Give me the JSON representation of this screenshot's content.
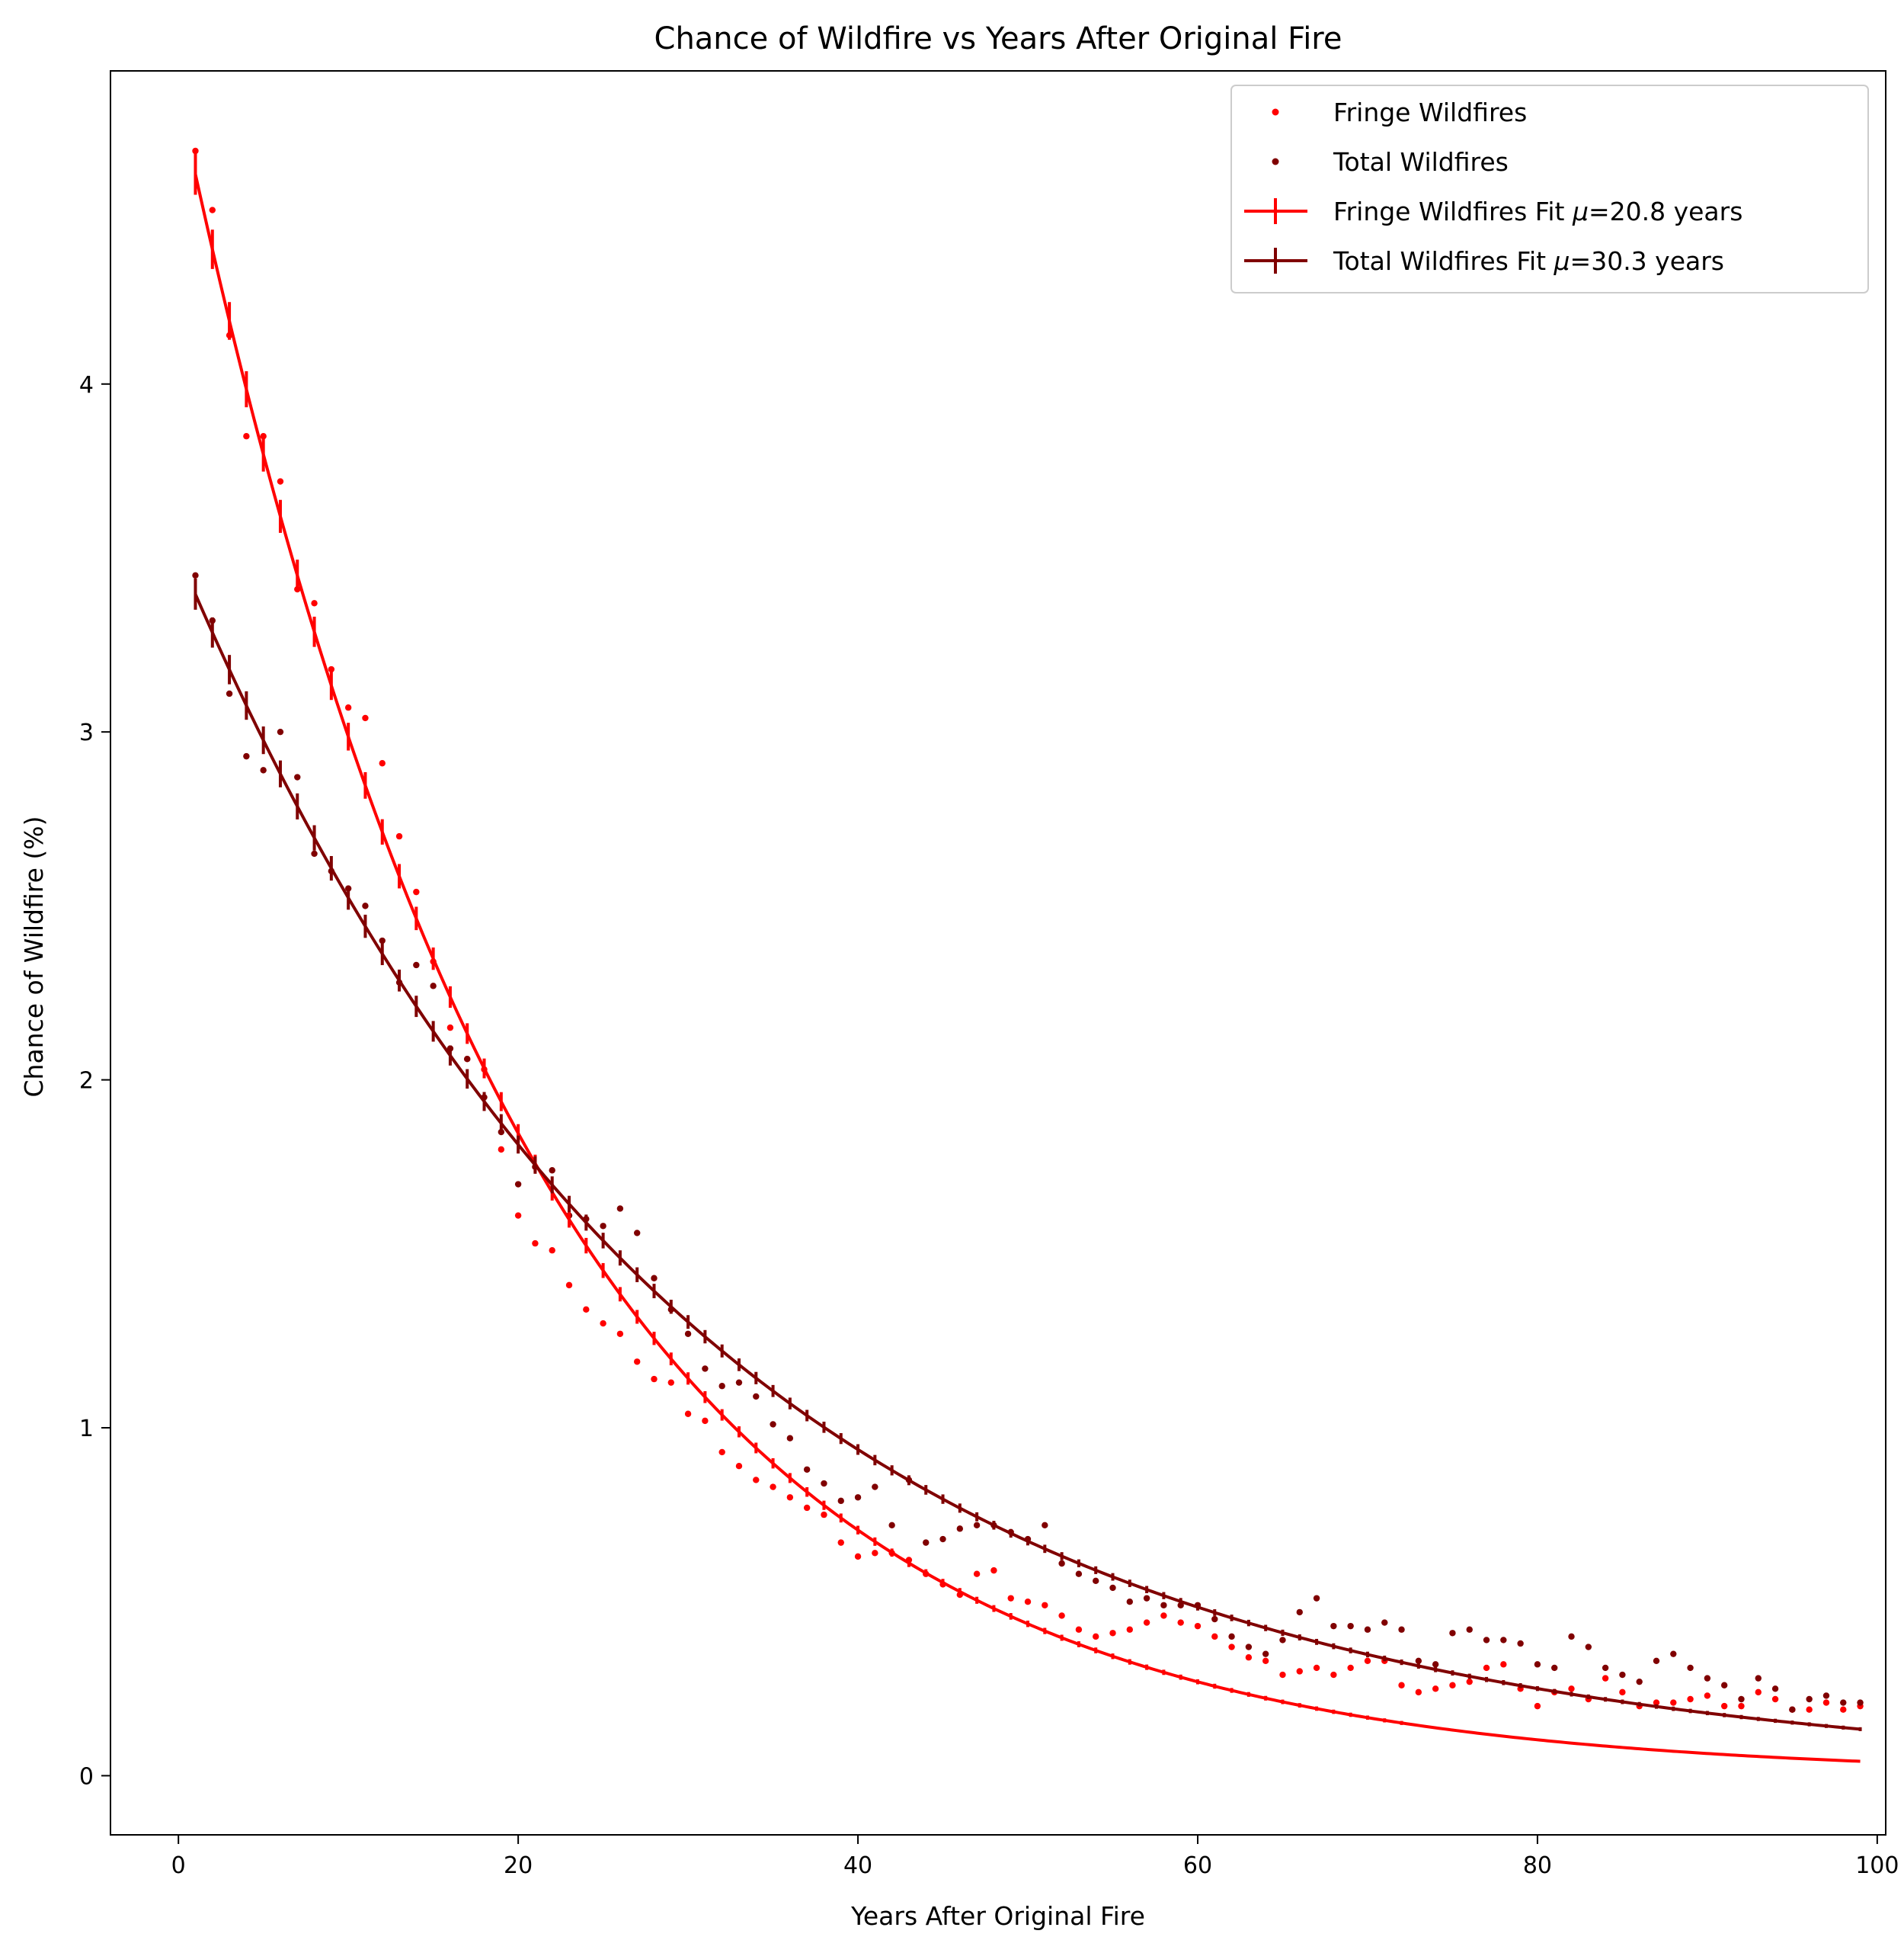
{
  "chart_data": {
    "type": "scatter",
    "title": "Chance of Wildfire vs Years After Original Fire",
    "xlabel": "Years After Original Fire",
    "ylabel": "Chance of Wildfire (%)",
    "xlim": [
      -4,
      100.5
    ],
    "ylim": [
      -0.17,
      4.9
    ],
    "xticks": [
      0,
      20,
      40,
      60,
      80,
      100
    ],
    "yticks": [
      0,
      1,
      2,
      3,
      4
    ],
    "grid": false,
    "legend_position": "top-right",
    "series": [
      {
        "name": "Fringe Wildfires",
        "kind": "scatter",
        "color": "#ff0000",
        "x": [
          1,
          2,
          3,
          4,
          5,
          6,
          7,
          8,
          9,
          10,
          11,
          12,
          13,
          14,
          15,
          16,
          17,
          18,
          19,
          20,
          21,
          22,
          23,
          24,
          25,
          26,
          27,
          28,
          29,
          30,
          31,
          32,
          33,
          34,
          35,
          36,
          37,
          38,
          39,
          40,
          41,
          42,
          43,
          44,
          45,
          46,
          47,
          48,
          49,
          50,
          51,
          52,
          53,
          54,
          55,
          56,
          57,
          58,
          59,
          60,
          61,
          62,
          63,
          64,
          65,
          66,
          67,
          68,
          69,
          70,
          71,
          72,
          73,
          74,
          75,
          76,
          77,
          78,
          79,
          80,
          81,
          82,
          83,
          84,
          85,
          86,
          87,
          88,
          89,
          90,
          91,
          92,
          93,
          94,
          95,
          96,
          97,
          98,
          99
        ],
        "y": [
          4.67,
          4.5,
          4.14,
          3.85,
          3.85,
          3.72,
          3.41,
          3.37,
          3.18,
          3.07,
          3.04,
          2.91,
          2.7,
          2.54,
          2.34,
          2.15,
          2.06,
          2.03,
          1.8,
          1.61,
          1.53,
          1.51,
          1.41,
          1.34,
          1.3,
          1.27,
          1.19,
          1.14,
          1.13,
          1.04,
          1.02,
          0.93,
          0.89,
          0.85,
          0.83,
          0.8,
          0.77,
          0.75,
          0.67,
          0.63,
          0.64,
          0.64,
          0.62,
          0.58,
          0.55,
          0.52,
          0.58,
          0.59,
          0.51,
          0.5,
          0.49,
          0.46,
          0.42,
          0.4,
          0.41,
          0.42,
          0.44,
          0.46,
          0.44,
          0.43,
          0.4,
          0.37,
          0.34,
          0.33,
          0.29,
          0.3,
          0.31,
          0.29,
          0.31,
          0.33,
          0.33,
          0.26,
          0.24,
          0.25,
          0.26,
          0.27,
          0.31,
          0.32,
          0.25,
          0.2,
          0.24,
          0.25,
          0.22,
          0.28,
          0.24,
          0.2,
          0.21,
          0.21,
          0.22,
          0.23,
          0.2,
          0.2,
          0.24,
          0.22,
          0.19,
          0.19,
          0.21,
          0.19,
          0.2
        ]
      },
      {
        "name": "Total Wildfires",
        "kind": "scatter",
        "color": "#800000",
        "x": [
          1,
          2,
          3,
          4,
          5,
          6,
          7,
          8,
          9,
          10,
          11,
          12,
          13,
          14,
          15,
          16,
          17,
          18,
          19,
          20,
          21,
          22,
          23,
          24,
          25,
          26,
          27,
          28,
          29,
          30,
          31,
          32,
          33,
          34,
          35,
          36,
          37,
          38,
          39,
          40,
          41,
          42,
          43,
          44,
          45,
          46,
          47,
          48,
          49,
          50,
          51,
          52,
          53,
          54,
          55,
          56,
          57,
          58,
          59,
          60,
          61,
          62,
          63,
          64,
          65,
          66,
          67,
          68,
          69,
          70,
          71,
          72,
          73,
          74,
          75,
          76,
          77,
          78,
          79,
          80,
          81,
          82,
          83,
          84,
          85,
          86,
          87,
          88,
          89,
          90,
          91,
          92,
          93,
          94,
          95,
          96,
          97,
          98,
          99
        ],
        "y": [
          3.45,
          3.32,
          3.11,
          2.93,
          2.89,
          3.0,
          2.87,
          2.65,
          2.6,
          2.55,
          2.5,
          2.4,
          2.28,
          2.33,
          2.27,
          2.09,
          2.06,
          1.95,
          1.85,
          1.7,
          1.75,
          1.74,
          1.61,
          1.6,
          1.58,
          1.63,
          1.56,
          1.43,
          1.34,
          1.27,
          1.17,
          1.12,
          1.13,
          1.09,
          1.01,
          0.97,
          0.88,
          0.84,
          0.79,
          0.8,
          0.83,
          0.72,
          0.85,
          0.67,
          0.68,
          0.71,
          0.72,
          0.72,
          0.7,
          0.68,
          0.72,
          0.61,
          0.58,
          0.56,
          0.54,
          0.5,
          0.51,
          0.49,
          0.49,
          0.49,
          0.45,
          0.4,
          0.37,
          0.35,
          0.39,
          0.47,
          0.51,
          0.43,
          0.43,
          0.42,
          0.44,
          0.42,
          0.33,
          0.32,
          0.41,
          0.42,
          0.39,
          0.39,
          0.38,
          0.32,
          0.31,
          0.4,
          0.37,
          0.31,
          0.29,
          0.27,
          0.33,
          0.35,
          0.31,
          0.28,
          0.26,
          0.22,
          0.28,
          0.25,
          0.19,
          0.22,
          0.23,
          0.21,
          0.21
        ]
      },
      {
        "name": "Fringe Wildfires Fit μ=20.8 years",
        "label_prefix": "Fringe Wildfires Fit ",
        "label_suffix": "=20.8 years",
        "kind": "fit",
        "color": "#ff0000",
        "x_start": 1,
        "x_end": 99,
        "amplitude": 4.83,
        "mu": 20.8,
        "errorbars_until": 72
      },
      {
        "name": "Total Wildfires Fit μ=30.3 years",
        "label_prefix": "Total Wildfires Fit ",
        "label_suffix": "=30.3 years",
        "kind": "fit",
        "color": "#800000",
        "x_start": 1,
        "x_end": 99,
        "amplitude": 3.51,
        "mu": 30.3,
        "errorbars_until": 99
      }
    ]
  }
}
